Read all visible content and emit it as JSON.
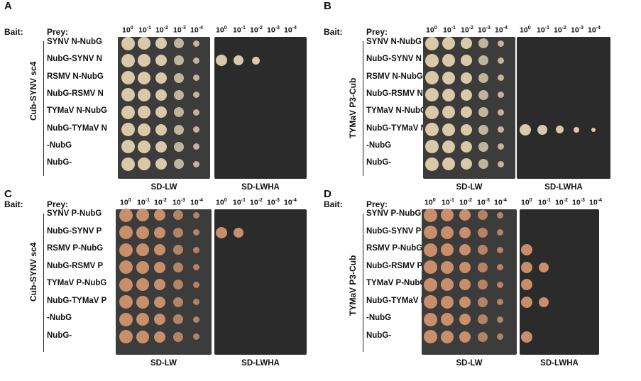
{
  "panels": [
    {
      "id": "A",
      "letter": "A",
      "bait_label": "Bait:",
      "prey_label": "Prey:",
      "bait_name": "Cub-SYNV sc4",
      "preys": [
        "SYNV N-NubG",
        "NubG-SYNV N",
        "RSMV N-NubG",
        "NubG-RSMV N",
        "TYMaV N-NubG",
        "NubG-TYMaV N",
        "-NubG",
        "NubG-"
      ],
      "dilutions": [
        "10",
        "10",
        "10",
        "10",
        "10"
      ],
      "dilution_exps": [
        "0",
        "-1",
        "-2",
        "-3",
        "-4"
      ],
      "plate_lw": "SD-LW",
      "plate_lwha": "SD-LWHA",
      "growth_lwha": [
        0,
        3,
        0,
        0,
        0,
        0,
        0,
        0
      ]
    },
    {
      "id": "B",
      "letter": "B",
      "bait_label": "Bait:",
      "prey_label": "Prey:",
      "bait_name": "TYMaV P3-Cub",
      "preys": [
        "SYNV N-NubG",
        "NubG-SYNV N",
        "RSMV N-NubG",
        "NubG-RSMV N",
        "TYMaV N-NubG",
        "NubG-TYMaV N",
        "-NubG",
        "NubG-"
      ],
      "dilutions": [
        "10",
        "10",
        "10",
        "10",
        "10"
      ],
      "dilution_exps": [
        "0",
        "-1",
        "-2",
        "-3",
        "-4"
      ],
      "plate_lw": "SD-LW",
      "plate_lwha": "SD-LWHA",
      "growth_lwha": [
        0,
        0,
        0,
        0,
        0,
        5,
        0,
        0
      ]
    },
    {
      "id": "C",
      "letter": "C",
      "bait_label": "Bait:",
      "prey_label": "Prey:",
      "bait_name": "Cub-SYNV sc4",
      "preys": [
        "SYNV P-NubG",
        "NubG-SYNV P",
        "RSMV P-NubG",
        "NubG-RSMV P",
        "TYMaV P-NubG",
        "NubG-TYMaV P",
        "-NubG",
        "NubG-"
      ],
      "dilutions": [
        "10",
        "10",
        "10",
        "10",
        "10"
      ],
      "dilution_exps": [
        "0",
        "-1",
        "-2",
        "-3",
        "-4"
      ],
      "plate_lw": "SD-LW",
      "plate_lwha": "SD-LWHA",
      "growth_lwha": [
        0,
        2,
        0,
        0,
        0,
        0,
        0,
        0
      ]
    },
    {
      "id": "D",
      "letter": "D",
      "bait_label": "Bait:",
      "prey_label": "Prey:",
      "bait_name": "TYMaV P3-Cub",
      "preys": [
        "SYNV P-NubG",
        "NubG-SYNV P",
        "RSMV P-NubG",
        "NubG-RSMV P",
        "TYMaV P-NubG",
        "NubG-TYMaV P",
        "-NubG",
        "NubG-"
      ],
      "dilutions": [
        "10",
        "10",
        "10",
        "10",
        "10"
      ],
      "dilution_exps": [
        "0",
        "-1",
        "-2",
        "-3",
        "-4"
      ],
      "plate_lw": "SD-LW",
      "plate_lwha": "SD-LWHA",
      "growth_lwha": [
        0,
        0,
        1,
        2,
        1,
        2,
        0,
        1
      ]
    }
  ],
  "colors": {
    "plate_lw": "#3c3c3c",
    "plate_lwha": "#2b2b2b",
    "colony_ab": "#d9c9a8",
    "colony_cd": "#c98f6a"
  }
}
